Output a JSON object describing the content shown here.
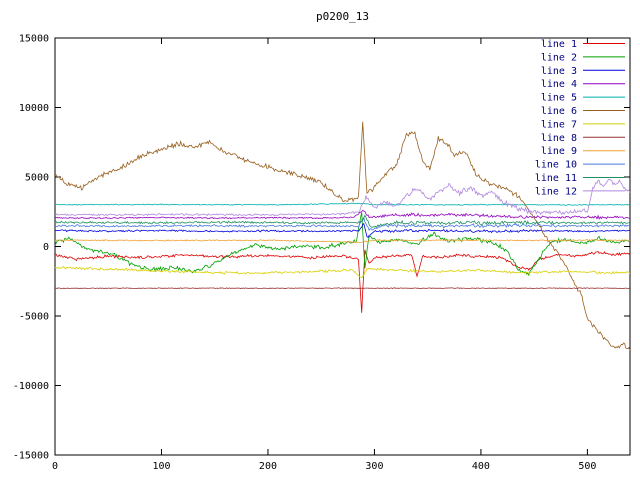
{
  "title": "p0200_13",
  "colors": {
    "background": "#ffffff",
    "border": "#000000",
    "tick_text": "#000000",
    "title_text": "#000000",
    "legend_text": "#000080"
  },
  "chart_data": {
    "type": "line",
    "title": "p0200_13",
    "xlabel": "",
    "ylabel": "",
    "xlim": [
      0,
      540
    ],
    "ylim": [
      -15000,
      15000
    ],
    "xticks": [
      0,
      100,
      200,
      300,
      400,
      500
    ],
    "yticks": [
      -15000,
      -10000,
      -5000,
      0,
      5000,
      10000,
      15000
    ],
    "grid": false,
    "legend_position": "top-right",
    "series": [
      {
        "name": "line 1",
        "color": "#e00000",
        "noise": 120,
        "keypoints": [
          [
            0,
            -600
          ],
          [
            20,
            -900
          ],
          [
            50,
            -700
          ],
          [
            80,
            -800
          ],
          [
            120,
            -600
          ],
          [
            160,
            -750
          ],
          [
            200,
            -650
          ],
          [
            240,
            -800
          ],
          [
            270,
            -700
          ],
          [
            285,
            -900
          ],
          [
            288,
            -4800
          ],
          [
            291,
            -300
          ],
          [
            295,
            -1200
          ],
          [
            300,
            -800
          ],
          [
            320,
            -700
          ],
          [
            335,
            -600
          ],
          [
            340,
            -2200
          ],
          [
            345,
            -700
          ],
          [
            360,
            -800
          ],
          [
            380,
            -600
          ],
          [
            400,
            -750
          ],
          [
            420,
            -800
          ],
          [
            435,
            -1500
          ],
          [
            445,
            -1700
          ],
          [
            455,
            -900
          ],
          [
            470,
            -600
          ],
          [
            490,
            -700
          ],
          [
            510,
            -400
          ],
          [
            525,
            -600
          ],
          [
            540,
            -500
          ]
        ]
      },
      {
        "name": "line 2",
        "color": "#00a000",
        "noise": 180,
        "keypoints": [
          [
            0,
            300
          ],
          [
            15,
            600
          ],
          [
            30,
            -200
          ],
          [
            50,
            -400
          ],
          [
            70,
            -1200
          ],
          [
            90,
            -1700
          ],
          [
            110,
            -1500
          ],
          [
            130,
            -1800
          ],
          [
            150,
            -1200
          ],
          [
            170,
            -400
          ],
          [
            190,
            100
          ],
          [
            210,
            -200
          ],
          [
            230,
            100
          ],
          [
            250,
            -100
          ],
          [
            270,
            200
          ],
          [
            283,
            400
          ],
          [
            288,
            2400
          ],
          [
            291,
            -1500
          ],
          [
            295,
            800
          ],
          [
            305,
            300
          ],
          [
            320,
            500
          ],
          [
            340,
            200
          ],
          [
            355,
            900
          ],
          [
            370,
            400
          ],
          [
            390,
            600
          ],
          [
            410,
            300
          ],
          [
            425,
            -300
          ],
          [
            435,
            -1700
          ],
          [
            445,
            -2000
          ],
          [
            455,
            -800
          ],
          [
            465,
            300
          ],
          [
            480,
            500
          ],
          [
            495,
            200
          ],
          [
            510,
            600
          ],
          [
            525,
            300
          ],
          [
            540,
            400
          ]
        ]
      },
      {
        "name": "line 3",
        "color": "#0000e0",
        "noise": 70,
        "boost": {
          "from": 285,
          "to": 470,
          "amp": 110
        },
        "keypoints": [
          [
            0,
            1150
          ],
          [
            50,
            1100
          ],
          [
            100,
            1150
          ],
          [
            150,
            1100
          ],
          [
            200,
            1120
          ],
          [
            250,
            1100
          ],
          [
            285,
            1150
          ],
          [
            290,
            1600
          ],
          [
            293,
            700
          ],
          [
            300,
            1100
          ],
          [
            350,
            1150
          ],
          [
            400,
            1100
          ],
          [
            450,
            1120
          ],
          [
            500,
            1100
          ],
          [
            540,
            1150
          ]
        ]
      },
      {
        "name": "line 4",
        "color": "#9000c0",
        "noise": 55,
        "boost": {
          "from": 285,
          "to": 545,
          "amp": 130
        },
        "keypoints": [
          [
            0,
            2050
          ],
          [
            50,
            2050
          ],
          [
            100,
            2080
          ],
          [
            150,
            2050
          ],
          [
            200,
            2060
          ],
          [
            250,
            2050
          ],
          [
            280,
            2100
          ],
          [
            290,
            2600
          ],
          [
            295,
            2100
          ],
          [
            310,
            2200
          ],
          [
            330,
            2300
          ],
          [
            350,
            2250
          ],
          [
            370,
            2300
          ],
          [
            390,
            2250
          ],
          [
            410,
            2200
          ],
          [
            430,
            2150
          ],
          [
            450,
            2100
          ],
          [
            470,
            2100
          ],
          [
            490,
            2150
          ],
          [
            510,
            2100
          ],
          [
            540,
            2100
          ]
        ]
      },
      {
        "name": "line 5",
        "color": "#00b0b0",
        "noise": 45,
        "keypoints": [
          [
            0,
            3000
          ],
          [
            100,
            3020
          ],
          [
            200,
            3000
          ],
          [
            290,
            3100
          ],
          [
            300,
            3000
          ],
          [
            400,
            3000
          ],
          [
            500,
            3000
          ],
          [
            540,
            3000
          ]
        ]
      },
      {
        "name": "line 6",
        "color": "#986020",
        "noise": 220,
        "keypoints": [
          [
            0,
            5200
          ],
          [
            10,
            4600
          ],
          [
            25,
            4200
          ],
          [
            40,
            5000
          ],
          [
            60,
            5600
          ],
          [
            80,
            6500
          ],
          [
            100,
            7000
          ],
          [
            115,
            7400
          ],
          [
            130,
            7100
          ],
          [
            145,
            7500
          ],
          [
            160,
            6800
          ],
          [
            175,
            6300
          ],
          [
            190,
            5900
          ],
          [
            205,
            5600
          ],
          [
            220,
            5300
          ],
          [
            235,
            5000
          ],
          [
            250,
            4600
          ],
          [
            265,
            3600
          ],
          [
            275,
            3300
          ],
          [
            285,
            3600
          ],
          [
            289,
            9000
          ],
          [
            293,
            3800
          ],
          [
            300,
            4200
          ],
          [
            310,
            5200
          ],
          [
            320,
            5800
          ],
          [
            330,
            8000
          ],
          [
            338,
            8200
          ],
          [
            345,
            6200
          ],
          [
            352,
            5600
          ],
          [
            360,
            7800
          ],
          [
            368,
            7400
          ],
          [
            375,
            6600
          ],
          [
            385,
            6900
          ],
          [
            395,
            5200
          ],
          [
            405,
            4600
          ],
          [
            415,
            4300
          ],
          [
            425,
            4100
          ],
          [
            435,
            3600
          ],
          [
            445,
            2600
          ],
          [
            455,
            1500
          ],
          [
            465,
            300
          ],
          [
            475,
            -800
          ],
          [
            485,
            -2200
          ],
          [
            495,
            -3600
          ],
          [
            500,
            -5200
          ],
          [
            505,
            -5600
          ],
          [
            512,
            -6300
          ],
          [
            520,
            -6900
          ],
          [
            528,
            -7300
          ],
          [
            534,
            -7000
          ],
          [
            540,
            -7500
          ]
        ]
      },
      {
        "name": "line 7",
        "color": "#d8d000",
        "noise": 110,
        "keypoints": [
          [
            0,
            -1500
          ],
          [
            40,
            -1600
          ],
          [
            80,
            -1700
          ],
          [
            120,
            -1800
          ],
          [
            160,
            -1900
          ],
          [
            200,
            -1900
          ],
          [
            240,
            -1800
          ],
          [
            280,
            -1700
          ],
          [
            288,
            -2300
          ],
          [
            293,
            -1600
          ],
          [
            320,
            -1700
          ],
          [
            360,
            -1800
          ],
          [
            400,
            -1700
          ],
          [
            440,
            -1900
          ],
          [
            480,
            -1800
          ],
          [
            520,
            -1900
          ],
          [
            540,
            -1850
          ]
        ]
      },
      {
        "name": "line 8",
        "color": "#983030",
        "noise": 35,
        "keypoints": [
          [
            0,
            -3000
          ],
          [
            100,
            -3000
          ],
          [
            200,
            -3000
          ],
          [
            300,
            -3000
          ],
          [
            400,
            -3000
          ],
          [
            500,
            -3000
          ],
          [
            540,
            -3000
          ]
        ]
      },
      {
        "name": "line 9",
        "color": "#f0a030",
        "noise": 55,
        "keypoints": [
          [
            0,
            450
          ],
          [
            100,
            430
          ],
          [
            200,
            450
          ],
          [
            288,
            300
          ],
          [
            300,
            450
          ],
          [
            400,
            440
          ],
          [
            500,
            450
          ],
          [
            540,
            450
          ]
        ]
      },
      {
        "name": "line 10",
        "color": "#4878e0",
        "noise": 90,
        "boost": {
          "from": 285,
          "to": 470,
          "amp": 150
        },
        "keypoints": [
          [
            0,
            1500
          ],
          [
            60,
            1450
          ],
          [
            120,
            1500
          ],
          [
            180,
            1480
          ],
          [
            240,
            1500
          ],
          [
            285,
            1450
          ],
          [
            290,
            2000
          ],
          [
            295,
            1200
          ],
          [
            310,
            1500
          ],
          [
            370,
            1480
          ],
          [
            430,
            1500
          ],
          [
            490,
            1480
          ],
          [
            540,
            1500
          ]
        ]
      },
      {
        "name": "line 11",
        "color": "#209060",
        "noise": 90,
        "boost": {
          "from": 285,
          "to": 470,
          "amp": 150
        },
        "keypoints": [
          [
            0,
            1750
          ],
          [
            80,
            1700
          ],
          [
            160,
            1750
          ],
          [
            240,
            1700
          ],
          [
            287,
            1750
          ],
          [
            291,
            2200
          ],
          [
            296,
            1400
          ],
          [
            320,
            1700
          ],
          [
            400,
            1720
          ],
          [
            480,
            1700
          ],
          [
            540,
            1720
          ]
        ]
      },
      {
        "name": "line 12",
        "color": "#b088e0",
        "noise": 80,
        "boost": {
          "from": 285,
          "to": 545,
          "amp": 220
        },
        "keypoints": [
          [
            0,
            2300
          ],
          [
            60,
            2280
          ],
          [
            120,
            2300
          ],
          [
            180,
            2280
          ],
          [
            240,
            2300
          ],
          [
            270,
            2350
          ],
          [
            285,
            2500
          ],
          [
            292,
            3500
          ],
          [
            300,
            2800
          ],
          [
            310,
            3200
          ],
          [
            320,
            2900
          ],
          [
            330,
            3600
          ],
          [
            340,
            4200
          ],
          [
            350,
            3400
          ],
          [
            360,
            3900
          ],
          [
            370,
            4400
          ],
          [
            380,
            3800
          ],
          [
            390,
            4300
          ],
          [
            400,
            3600
          ],
          [
            410,
            4000
          ],
          [
            420,
            3200
          ],
          [
            430,
            2900
          ],
          [
            440,
            2600
          ],
          [
            450,
            2500
          ],
          [
            460,
            2400
          ],
          [
            470,
            2500
          ],
          [
            480,
            2400
          ],
          [
            490,
            2600
          ],
          [
            500,
            2500
          ],
          [
            505,
            4200
          ],
          [
            510,
            4800
          ],
          [
            515,
            4300
          ],
          [
            520,
            5000
          ],
          [
            525,
            4400
          ],
          [
            530,
            4700
          ],
          [
            535,
            4200
          ],
          [
            540,
            3900
          ]
        ]
      }
    ]
  }
}
